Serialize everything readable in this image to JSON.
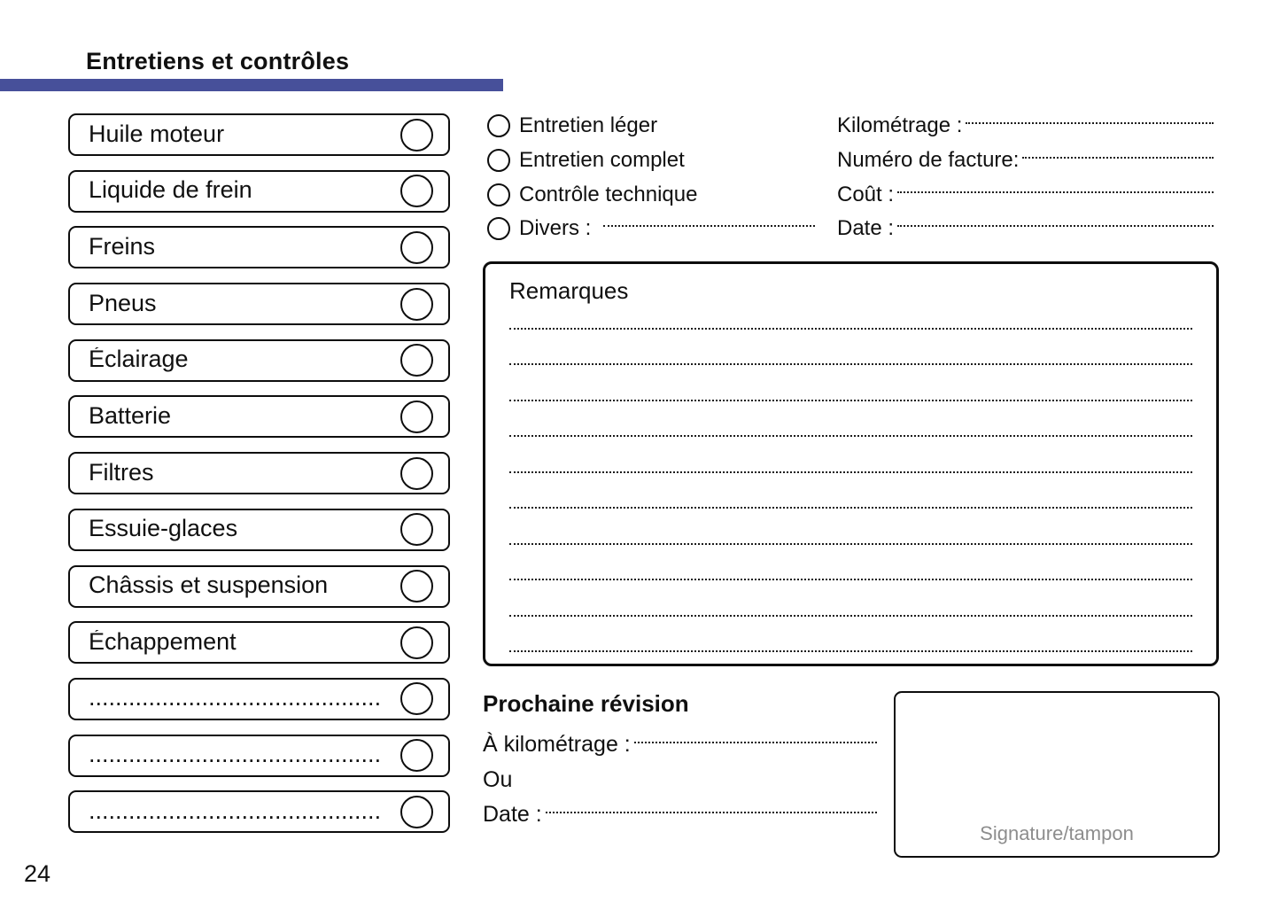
{
  "page": {
    "title": "Entretiens et contrôles",
    "page_number": "24"
  },
  "colors": {
    "accent_bar": "#47509a",
    "border": "#0d0d0d",
    "signature_text": "#8d8d8d"
  },
  "checklist": {
    "items": [
      {
        "label": "Huile moteur"
      },
      {
        "label": "Liquide de frein"
      },
      {
        "label": "Freins"
      },
      {
        "label": "Pneus"
      },
      {
        "label": "Éclairage"
      },
      {
        "label": "Batterie"
      },
      {
        "label": "Filtres"
      },
      {
        "label": "Essuie-glaces"
      },
      {
        "label": "Châssis et suspension"
      },
      {
        "label": "Échappement"
      },
      {
        "label": "............................................"
      },
      {
        "label": "............................................"
      },
      {
        "label": "............................................"
      }
    ]
  },
  "service_types": {
    "items": [
      {
        "label": "Entretien léger"
      },
      {
        "label": "Entretien complet"
      },
      {
        "label": "Contrôle technique"
      },
      {
        "label": "Divers :"
      }
    ]
  },
  "invoice_fields": {
    "items": [
      {
        "label": "Kilométrage :"
      },
      {
        "label": "Numéro de facture:"
      },
      {
        "label": "Coût :"
      },
      {
        "label": "Date :"
      }
    ]
  },
  "remarks": {
    "title": "Remarques",
    "line_count": 10
  },
  "next_service": {
    "title": "Prochaine révision",
    "field_km": "À kilométrage :",
    "field_or": "Ou",
    "field_date": "Date :"
  },
  "signature": {
    "label": "Signature/tampon"
  }
}
